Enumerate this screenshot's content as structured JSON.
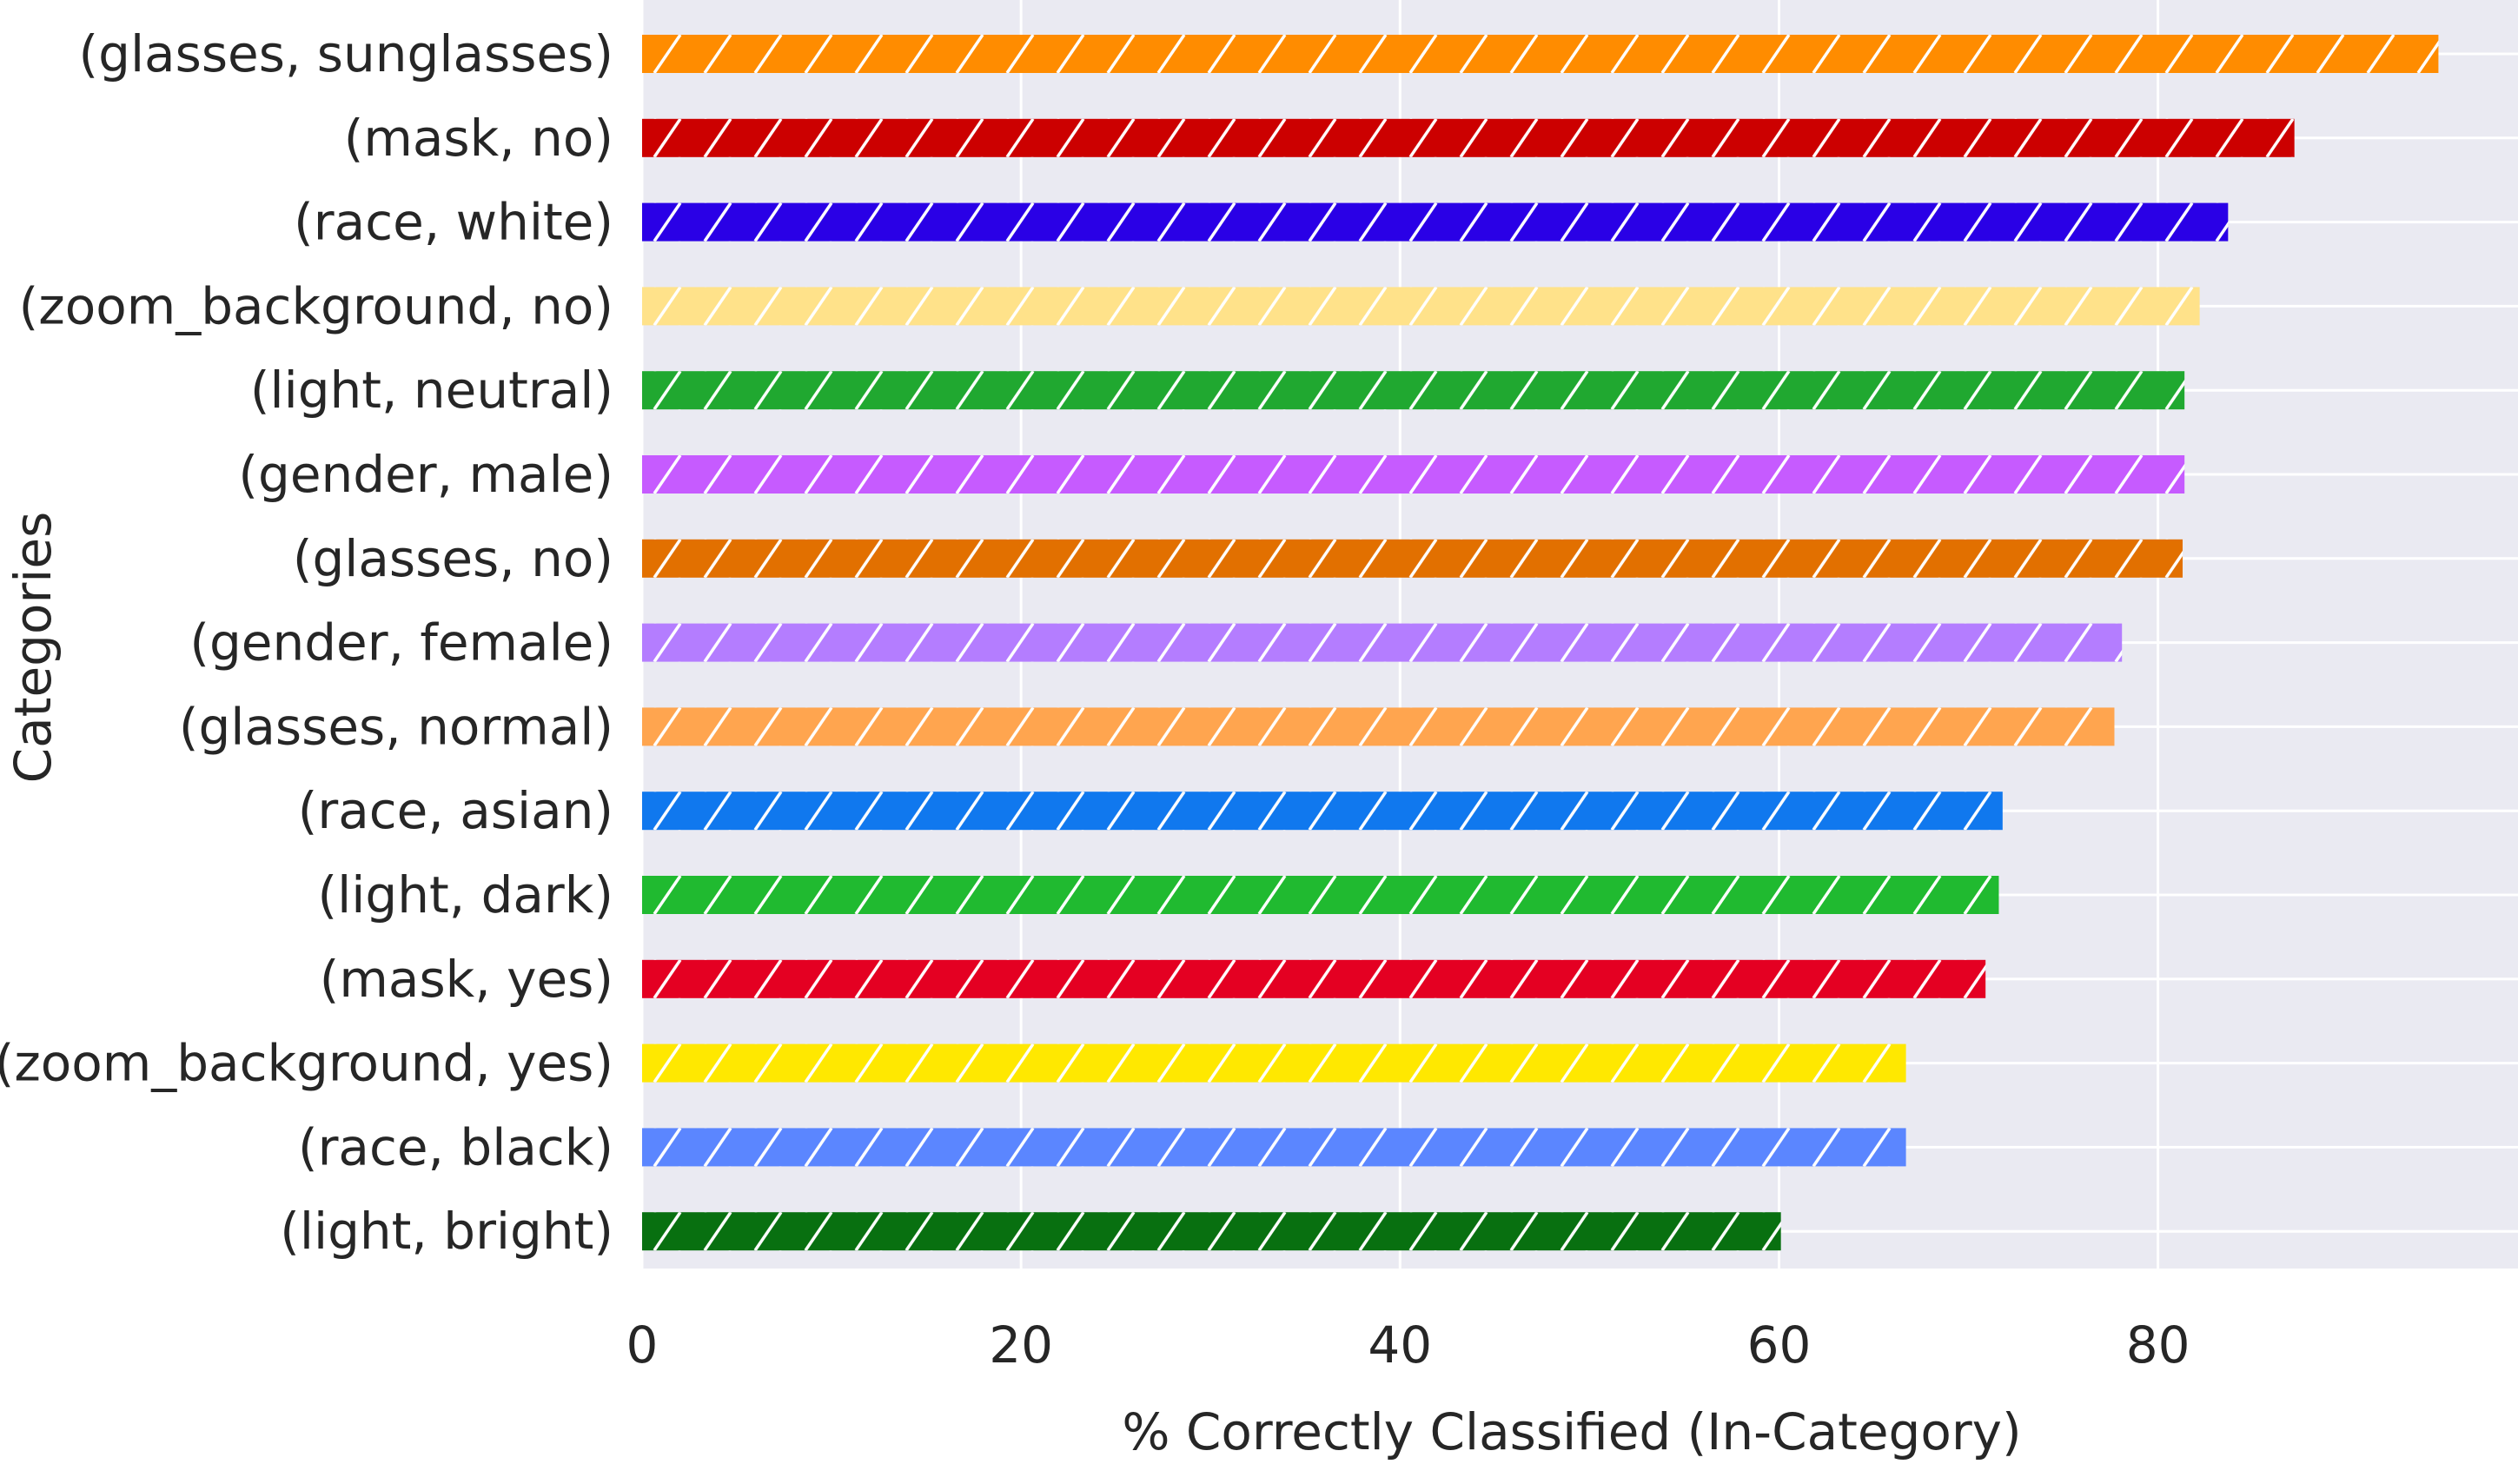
{
  "chart_data": {
    "type": "bar",
    "orientation": "horizontal",
    "categories": [
      "(glasses, sunglasses)",
      "(mask, no)",
      "(race, white)",
      "(zoom_background, no)",
      "(light, neutral)",
      "(gender, male)",
      "(glasses, no)",
      "(gender, female)",
      "(glasses, normal)",
      "(race, asian)",
      "(light, dark)",
      "(mask, yes)",
      "(zoom_background, yes)",
      "(race, black)",
      "(light, bright)"
    ],
    "values": [
      94.8,
      87.2,
      83.7,
      82.2,
      81.4,
      81.4,
      81.3,
      78.1,
      77.7,
      71.8,
      71.6,
      70.9,
      66.7,
      66.7,
      60.1
    ],
    "colors": [
      "#ff8c00",
      "#cc0000",
      "#2a00e6",
      "#ffe28a",
      "#20a830",
      "#c65bff",
      "#e27000",
      "#b47dff",
      "#ffa54f",
      "#1078ee",
      "#20ba30",
      "#e40022",
      "#ffe800",
      "#5b86ff",
      "#087010"
    ],
    "hatch": "/",
    "xlabel": "% Correctly Classified (In-Category)",
    "ylabel": "Categories",
    "xlim": [
      0,
      99
    ],
    "xticks": [
      0,
      20,
      40,
      60,
      80
    ],
    "grid": true,
    "legend": "none"
  }
}
